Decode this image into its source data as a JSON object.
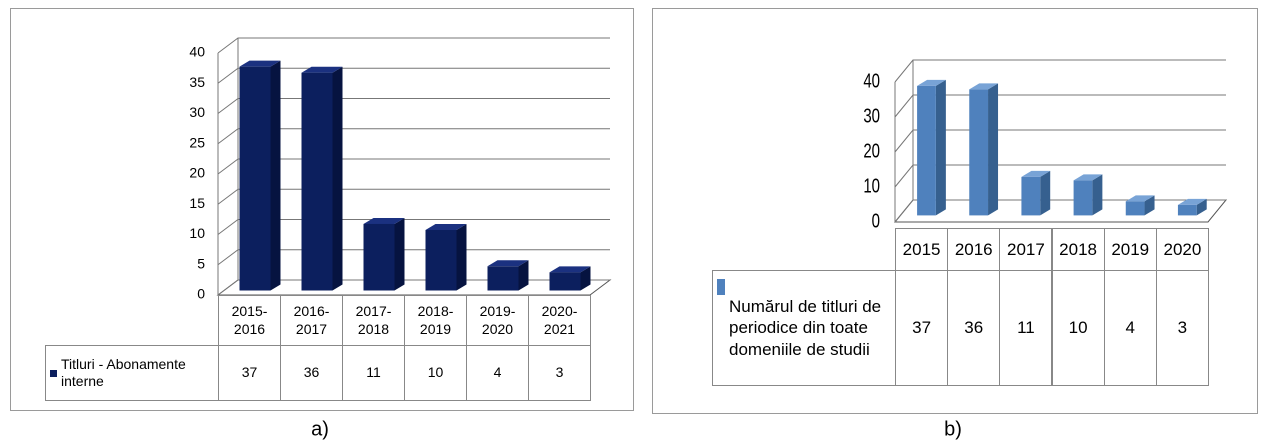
{
  "chart_data": [
    {
      "type": "bar",
      "caption": "a)",
      "categories": [
        "2015-\n2016",
        "2016-\n2017",
        "2017-\n2018",
        "2018-\n2019",
        "2019-\n2020",
        "2020-\n2021"
      ],
      "series": [
        {
          "name": "Titluri - Abonamente interne",
          "color": "#0c1f5e",
          "values": [
            37,
            36,
            11,
            10,
            4,
            3
          ]
        }
      ],
      "ylim": [
        0,
        40
      ],
      "yticks": [
        0,
        5,
        10,
        15,
        20,
        25,
        30,
        35,
        40
      ],
      "grid": true
    },
    {
      "type": "bar",
      "caption": "b)",
      "categories": [
        "2015",
        "2016",
        "2017",
        "2018",
        "2019",
        "2020"
      ],
      "series": [
        {
          "name": "Numărul de titluri de periodice din toate domeniile de studii",
          "color": "#4f81bd",
          "values": [
            37,
            36,
            11,
            10,
            4,
            3
          ]
        }
      ],
      "ylim": [
        0,
        40
      ],
      "yticks": [
        0,
        10,
        20,
        30,
        40
      ],
      "grid": true
    }
  ]
}
